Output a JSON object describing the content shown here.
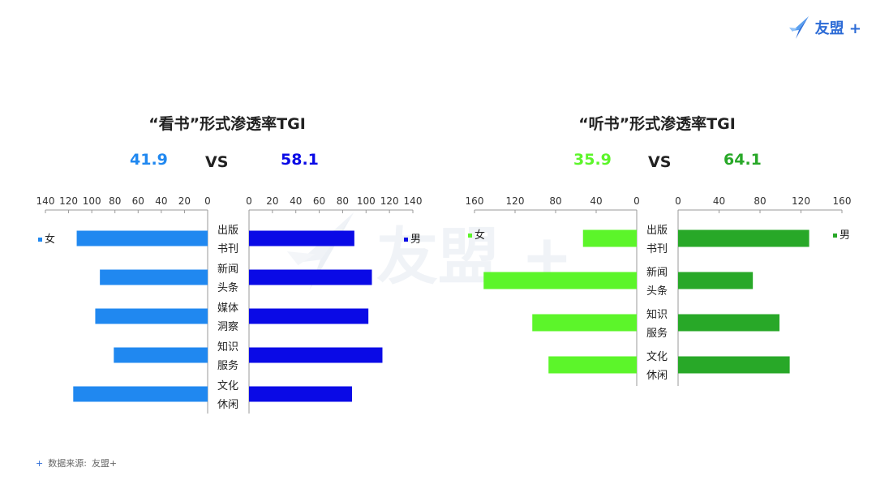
{
  "logo": {
    "text": "友盟 +"
  },
  "watermark": {
    "text": "友盟 +"
  },
  "footer": {
    "plus": "+",
    "source_label": "数据来源:",
    "source_value": "友盟+"
  },
  "colors": {
    "female_read": "#2088f0",
    "male_read": "#0a0ae6",
    "female_listen": "#5cf52a",
    "male_listen": "#28a828",
    "axis": "#999999",
    "logo": "#2c6bd6"
  },
  "chart_data": [
    {
      "type": "bar",
      "orientation": "horizontal-butterfly",
      "title": "“看书”形式渗透率TGI",
      "summary": {
        "female": "41.9",
        "vs": "VS",
        "male": "58.1"
      },
      "categories": [
        "出版书刊",
        "新闻头条",
        "媒体洞察",
        "知识服务",
        "文化休闲"
      ],
      "category_lines": [
        [
          "出版",
          "书刊"
        ],
        [
          "新闻",
          "头条"
        ],
        [
          "媒体",
          "洞察"
        ],
        [
          "知识",
          "服务"
        ],
        [
          "文化",
          "休闲"
        ]
      ],
      "xlim": [
        0,
        140
      ],
      "ticks": [
        0,
        20,
        40,
        60,
        80,
        100,
        120,
        140
      ],
      "series": [
        {
          "name": "女",
          "side": "left",
          "values": [
            113,
            93,
            97,
            81,
            116
          ]
        },
        {
          "name": "男",
          "side": "right",
          "values": [
            90,
            105,
            102,
            114,
            88
          ]
        }
      ]
    },
    {
      "type": "bar",
      "orientation": "horizontal-butterfly",
      "title": "“听书”形式渗透率TGI",
      "summary": {
        "female": "35.9",
        "vs": "VS",
        "male": "64.1"
      },
      "categories": [
        "出版书刊",
        "新闻头条",
        "知识服务",
        "文化休闲"
      ],
      "category_lines": [
        [
          "出版",
          "书刊"
        ],
        [
          "新闻",
          "头条"
        ],
        [
          "知识",
          "服务"
        ],
        [
          "文化",
          "休闲"
        ]
      ],
      "xlim": [
        0,
        160
      ],
      "ticks": [
        0,
        40,
        80,
        120,
        160
      ],
      "series": [
        {
          "name": "女",
          "side": "left",
          "values": [
            53,
            151,
            103,
            87
          ]
        },
        {
          "name": "男",
          "side": "right",
          "values": [
            128,
            73,
            99,
            109
          ]
        }
      ]
    }
  ]
}
